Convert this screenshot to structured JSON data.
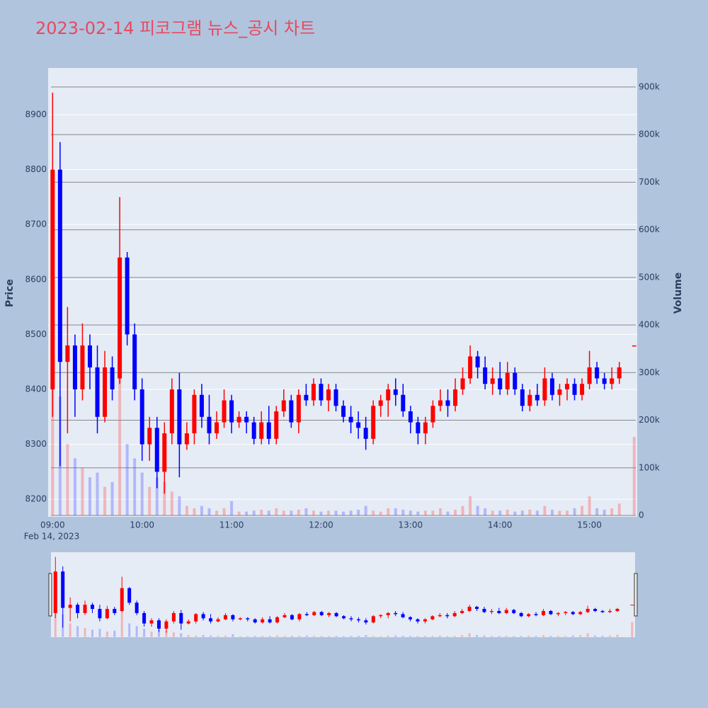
{
  "chart_data": {
    "type": "candlestick",
    "title": "2023-02-14 피코그램 뉴스_공시 차트",
    "ylabel": "Price",
    "y2label": "Volume",
    "x_date_label": "Feb 14, 2023",
    "x": [
      "09:00",
      "09:05",
      "09:10",
      "09:15",
      "09:20",
      "09:25",
      "09:30",
      "09:35",
      "09:40",
      "09:45",
      "09:50",
      "09:55",
      "10:00",
      "10:05",
      "10:10",
      "10:15",
      "10:20",
      "10:25",
      "10:30",
      "10:35",
      "10:40",
      "10:45",
      "10:50",
      "10:55",
      "11:00",
      "11:05",
      "11:10",
      "11:15",
      "11:20",
      "11:25",
      "11:30",
      "11:35",
      "11:40",
      "11:45",
      "11:50",
      "11:55",
      "12:00",
      "12:05",
      "12:10",
      "12:15",
      "12:20",
      "12:25",
      "12:30",
      "12:35",
      "12:40",
      "12:45",
      "12:50",
      "12:55",
      "13:00",
      "13:05",
      "13:10",
      "13:15",
      "13:20",
      "13:25",
      "13:30",
      "13:35",
      "13:40",
      "13:45",
      "13:50",
      "13:55",
      "14:00",
      "14:05",
      "14:10",
      "14:15",
      "14:20",
      "14:25",
      "14:30",
      "14:35",
      "14:40",
      "14:45",
      "14:50",
      "14:55",
      "15:00",
      "15:05",
      "15:10",
      "15:15",
      "15:20",
      "15:30"
    ],
    "open": [
      8400,
      8800,
      8450,
      8480,
      8400,
      8480,
      8440,
      8350,
      8440,
      8420,
      8640,
      8500,
      8400,
      8300,
      8330,
      8250,
      8320,
      8400,
      8300,
      8320,
      8390,
      8350,
      8320,
      8340,
      8380,
      8340,
      8350,
      8340,
      8310,
      8340,
      8310,
      8360,
      8380,
      8340,
      8390,
      8380,
      8410,
      8380,
      8400,
      8370,
      8350,
      8340,
      8330,
      8310,
      8370,
      8380,
      8400,
      8390,
      8360,
      8340,
      8320,
      8340,
      8370,
      8380,
      8370,
      8400,
      8420,
      8460,
      8440,
      8410,
      8420,
      8400,
      8430,
      8400,
      8370,
      8390,
      8380,
      8420,
      8390,
      8400,
      8410,
      8390,
      8410,
      8440,
      8420,
      8410,
      8420,
      8480
    ],
    "high": [
      8940,
      8850,
      8550,
      8500,
      8520,
      8500,
      8480,
      8470,
      8460,
      8750,
      8650,
      8520,
      8420,
      8350,
      8350,
      8340,
      8420,
      8430,
      8340,
      8400,
      8410,
      8390,
      8360,
      8400,
      8390,
      8360,
      8360,
      8350,
      8360,
      8370,
      8370,
      8400,
      8390,
      8400,
      8410,
      8420,
      8420,
      8410,
      8410,
      8380,
      8370,
      8360,
      8350,
      8380,
      8390,
      8410,
      8420,
      8410,
      8370,
      8350,
      8350,
      8380,
      8400,
      8400,
      8420,
      8440,
      8480,
      8470,
      8460,
      8440,
      8450,
      8450,
      8440,
      8410,
      8400,
      8410,
      8440,
      8430,
      8410,
      8420,
      8420,
      8420,
      8470,
      8450,
      8430,
      8440,
      8450,
      8480
    ],
    "low": [
      8350,
      8260,
      8320,
      8350,
      8380,
      8400,
      8320,
      8340,
      8380,
      8410,
      8480,
      8380,
      8270,
      8270,
      8220,
      8210,
      8300,
      8240,
      8290,
      8300,
      8330,
      8300,
      8310,
      8330,
      8320,
      8330,
      8320,
      8300,
      8300,
      8300,
      8300,
      8350,
      8330,
      8320,
      8370,
      8370,
      8370,
      8360,
      8360,
      8340,
      8320,
      8310,
      8290,
      8300,
      8350,
      8350,
      8370,
      8350,
      8320,
      8300,
      8300,
      8330,
      8360,
      8350,
      8360,
      8390,
      8410,
      8420,
      8400,
      8390,
      8390,
      8390,
      8390,
      8360,
      8360,
      8370,
      8370,
      8380,
      8370,
      8380,
      8380,
      8380,
      8400,
      8410,
      8400,
      8400,
      8410,
      8480
    ],
    "close": [
      8800,
      8450,
      8480,
      8400,
      8480,
      8440,
      8350,
      8440,
      8400,
      8640,
      8500,
      8400,
      8300,
      8330,
      8250,
      8320,
      8400,
      8300,
      8320,
      8390,
      8350,
      8320,
      8340,
      8380,
      8340,
      8350,
      8340,
      8310,
      8340,
      8310,
      8360,
      8380,
      8340,
      8390,
      8380,
      8410,
      8380,
      8400,
      8370,
      8350,
      8340,
      8330,
      8310,
      8370,
      8380,
      8400,
      8390,
      8360,
      8340,
      8320,
      8340,
      8370,
      8380,
      8370,
      8400,
      8420,
      8460,
      8440,
      8410,
      8420,
      8400,
      8430,
      8400,
      8370,
      8390,
      8380,
      8420,
      8390,
      8400,
      8410,
      8390,
      8410,
      8440,
      8420,
      8410,
      8420,
      8440,
      8480
    ],
    "volume": [
      350000,
      250000,
      150000,
      120000,
      100000,
      80000,
      90000,
      60000,
      70000,
      320000,
      150000,
      120000,
      90000,
      60000,
      80000,
      70000,
      50000,
      40000,
      20000,
      15000,
      20000,
      15000,
      10000,
      15000,
      30000,
      8000,
      8000,
      10000,
      12000,
      10000,
      15000,
      10000,
      10000,
      12000,
      15000,
      10000,
      8000,
      10000,
      10000,
      8000,
      10000,
      12000,
      20000,
      10000,
      8000,
      15000,
      15000,
      12000,
      10000,
      8000,
      10000,
      10000,
      15000,
      8000,
      12000,
      20000,
      40000,
      20000,
      15000,
      10000,
      10000,
      12000,
      8000,
      10000,
      12000,
      10000,
      20000,
      12000,
      10000,
      10000,
      15000,
      20000,
      40000,
      15000,
      12000,
      15000,
      25000,
      165000
    ],
    "increasing_color": "#ff0000",
    "decreasing_color": "#0000ff",
    "xlim": [
      "08:57",
      "15:32"
    ],
    "xticks": [
      "09:00",
      "10:00",
      "11:00",
      "12:00",
      "13:00",
      "14:00",
      "15:00"
    ],
    "ylim": [
      8168,
      8985
    ],
    "yticks": [
      8200,
      8300,
      8400,
      8500,
      8600,
      8700,
      8800,
      8900
    ],
    "y2lim": [
      -3000,
      940000
    ],
    "y2ticks": [
      0,
      {
        "value": 100000,
        "label": "100k"
      },
      {
        "value": 200000,
        "label": "200k"
      },
      {
        "value": 300000,
        "label": "300k"
      },
      {
        "value": 400000,
        "label": "400k"
      },
      {
        "value": 500000,
        "label": "500k"
      },
      {
        "value": 600000,
        "label": "600k"
      },
      {
        "value": 700000,
        "label": "700k"
      },
      {
        "value": 800000,
        "label": "800k"
      },
      {
        "value": 900000,
        "label": "900k"
      }
    ],
    "grid": true,
    "rangeslider": true
  }
}
